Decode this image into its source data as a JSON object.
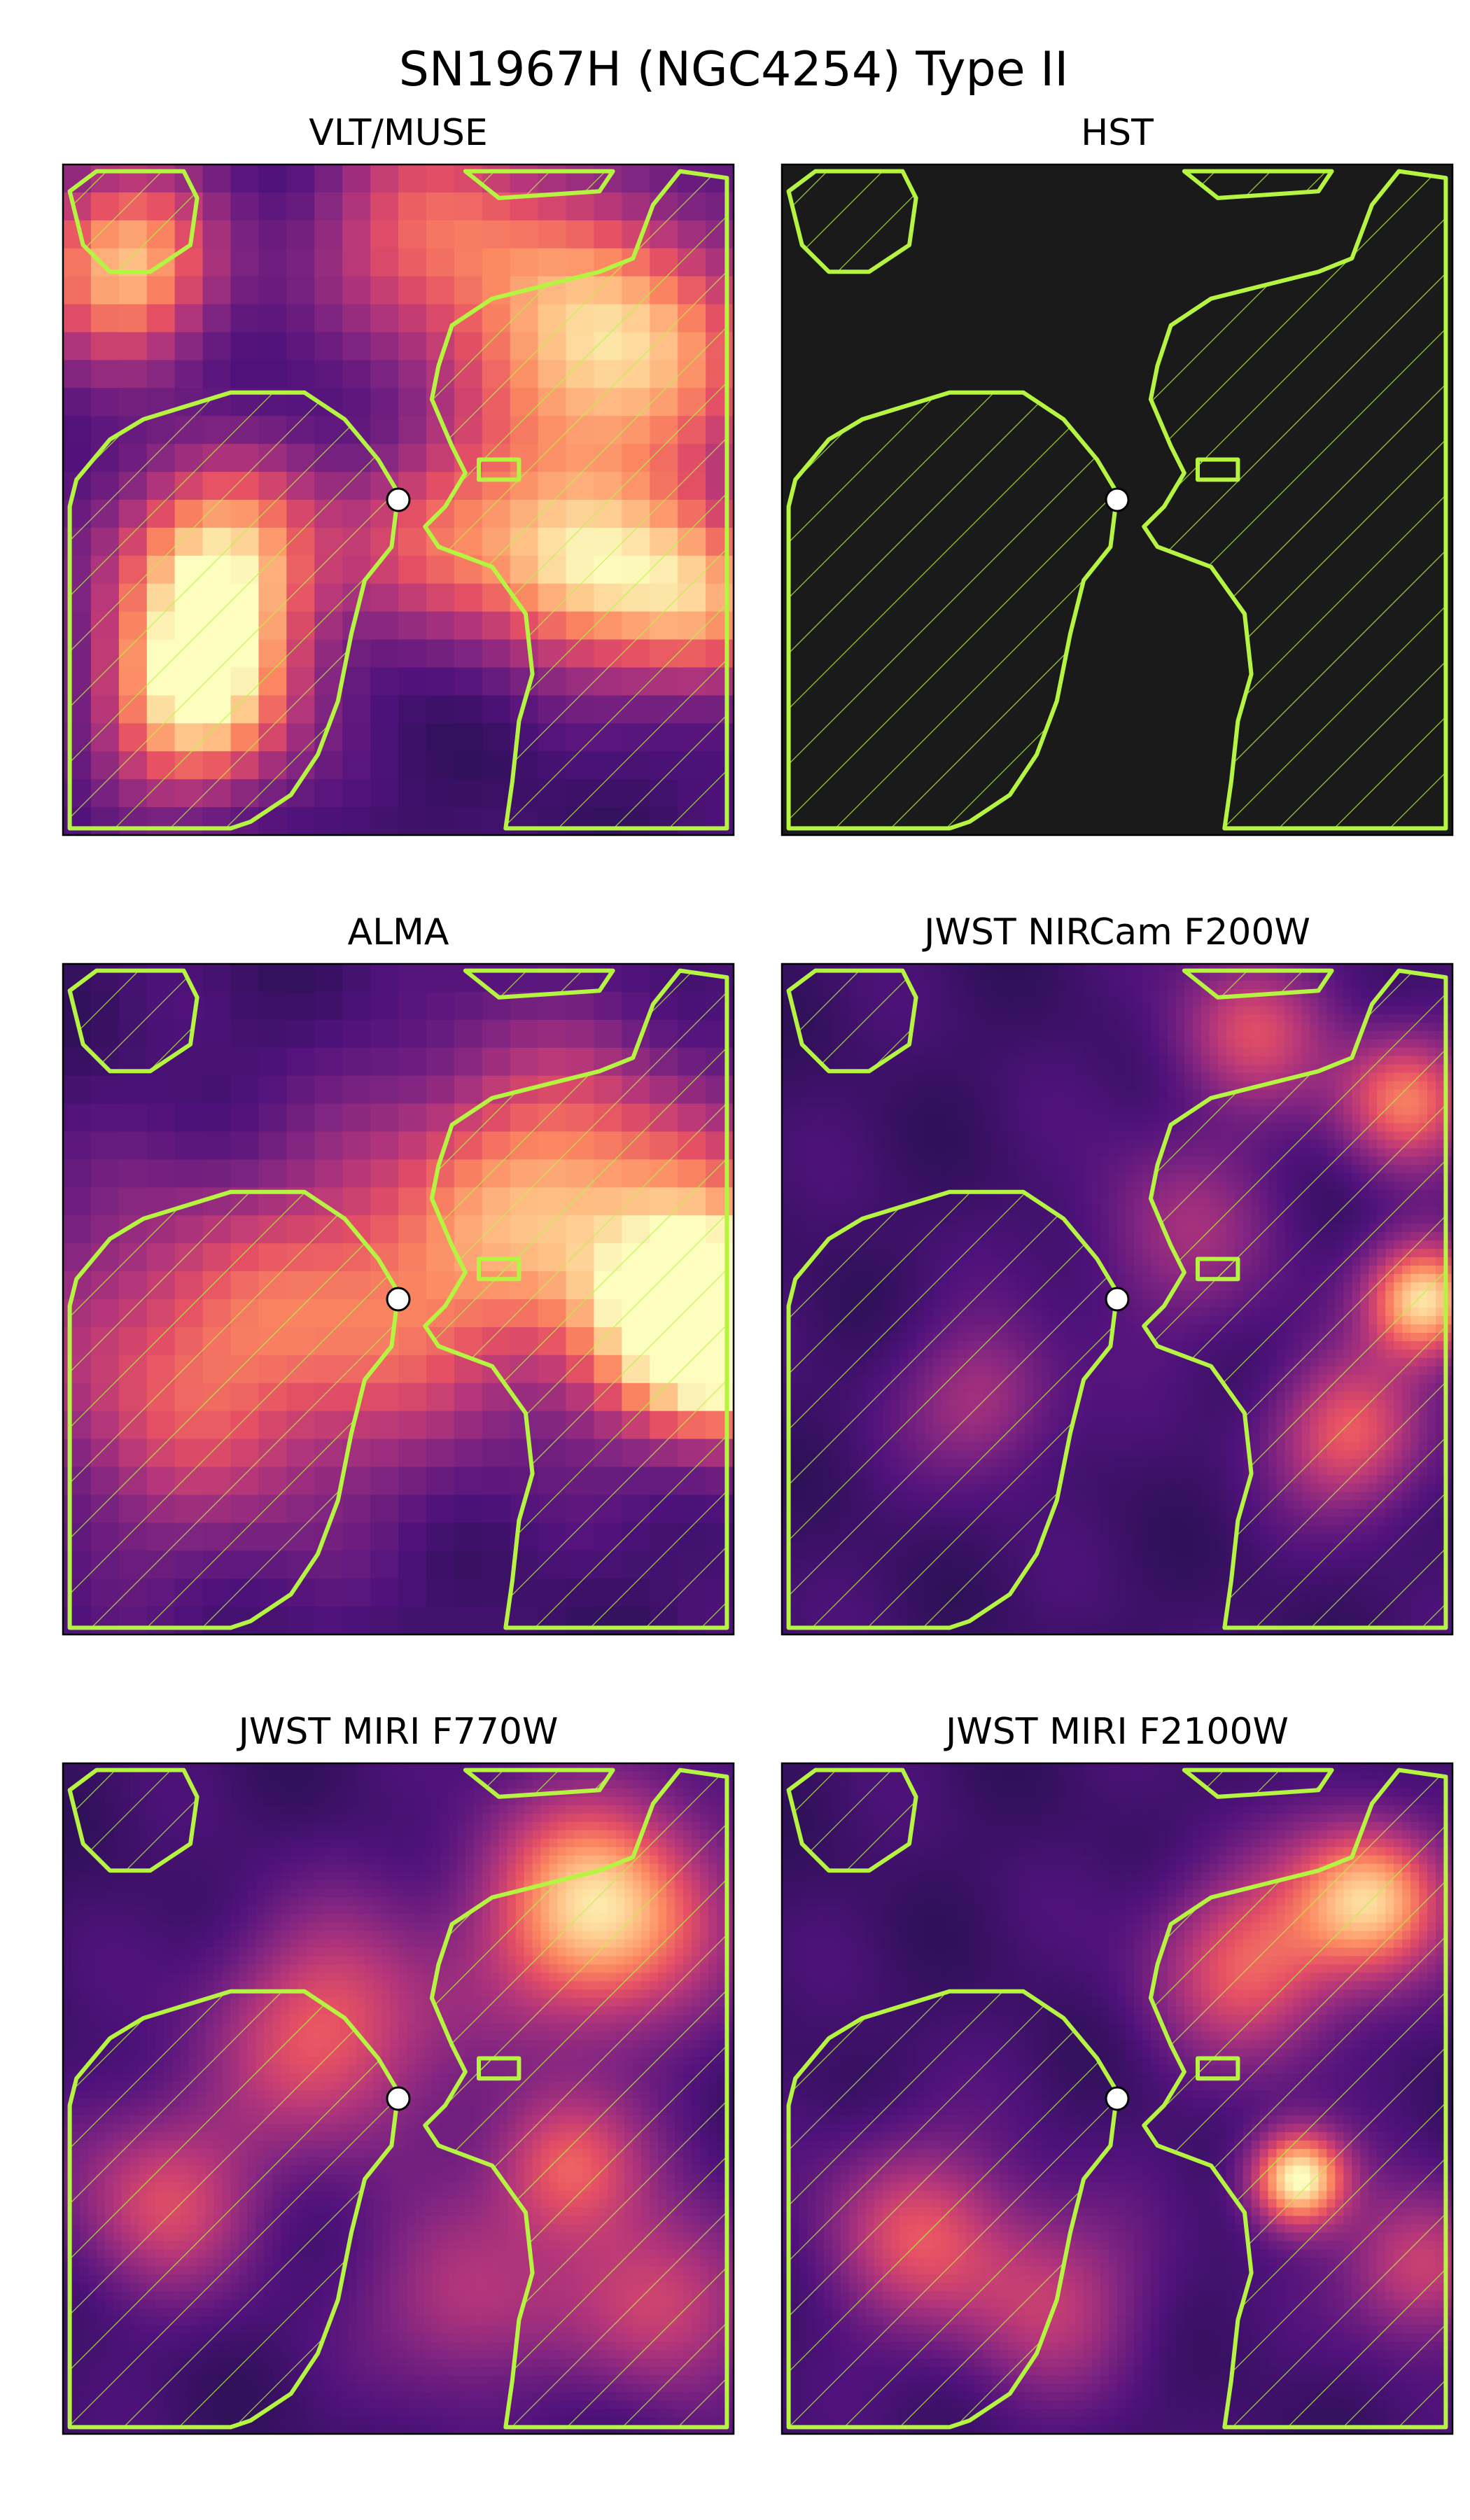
{
  "figure": {
    "suptitle": "SN1967H (NGC4254) Type II"
  },
  "colors": {
    "contour": "#b5f542",
    "marker_fill": "#ffffff",
    "marker_edge": "#000000",
    "colormap": [
      "#000004",
      "#1c1044",
      "#4f127b",
      "#812581",
      "#b5367a",
      "#e55064",
      "#fb8761",
      "#fec287",
      "#fcfdbf"
    ]
  },
  "chart_data": [
    {
      "type": "heatmap",
      "title": "VLT/MUSE",
      "image": "VLT/MUSE",
      "style": "pixelated",
      "grid": false,
      "marker": "open-circle-center",
      "sources": [
        {
          "x": 0.09,
          "y": 0.85,
          "s": 0.1,
          "a": 0.9
        },
        {
          "x": 0.23,
          "y": 0.4,
          "s": 0.11,
          "a": 1.0
        },
        {
          "x": 0.2,
          "y": 0.2,
          "s": 0.1,
          "a": 1.0
        },
        {
          "x": 0.82,
          "y": 0.72,
          "s": 0.15,
          "a": 1.0
        },
        {
          "x": 0.75,
          "y": 0.4,
          "s": 0.1,
          "a": 0.8
        },
        {
          "x": 0.95,
          "y": 0.35,
          "s": 0.1,
          "a": 0.8
        },
        {
          "x": 0.55,
          "y": 0.45,
          "s": 0.1,
          "a": 0.5
        },
        {
          "x": 0.55,
          "y": 0.9,
          "s": 0.12,
          "a": 0.6
        }
      ]
    },
    {
      "type": "heatmap",
      "title": "HST",
      "image": "HST",
      "style": "flat",
      "grid": false,
      "marker": "open-circle-center",
      "sources": []
    },
    {
      "type": "heatmap",
      "title": "ALMA",
      "image": "ALMA",
      "style": "pixelated",
      "grid": false,
      "marker": "open-circle-center",
      "sources": [
        {
          "x": 0.98,
          "y": 0.45,
          "s": 0.1,
          "a": 1.2
        },
        {
          "x": 0.9,
          "y": 0.55,
          "s": 0.16,
          "a": 0.7
        },
        {
          "x": 0.2,
          "y": 0.4,
          "s": 0.18,
          "a": 0.6
        },
        {
          "x": 0.5,
          "y": 0.5,
          "s": 0.15,
          "a": 0.5
        },
        {
          "x": 0.7,
          "y": 0.7,
          "s": 0.15,
          "a": 0.5
        }
      ]
    },
    {
      "type": "heatmap",
      "title": "JWST NIRCam F200W",
      "image": "JWST NIRCam F200W",
      "style": "smooth",
      "grid": false,
      "marker": "open-circle-center",
      "sources": [
        {
          "x": 0.96,
          "y": 0.5,
          "s": 0.06,
          "a": 1.0
        },
        {
          "x": 0.93,
          "y": 0.8,
          "s": 0.07,
          "a": 0.7
        },
        {
          "x": 0.85,
          "y": 0.3,
          "s": 0.08,
          "a": 0.6
        },
        {
          "x": 0.7,
          "y": 0.9,
          "s": 0.08,
          "a": 0.5
        },
        {
          "x": 0.3,
          "y": 0.35,
          "s": 0.08,
          "a": 0.35
        },
        {
          "x": 0.6,
          "y": 0.6,
          "s": 0.1,
          "a": 0.3
        }
      ]
    },
    {
      "type": "heatmap",
      "title": "JWST MIRI F770W",
      "image": "JWST MIRI F770W",
      "style": "smooth",
      "grid": false,
      "marker": "open-circle-center",
      "sources": [
        {
          "x": 0.8,
          "y": 0.78,
          "s": 0.12,
          "a": 1.0
        },
        {
          "x": 0.4,
          "y": 0.6,
          "s": 0.12,
          "a": 0.6
        },
        {
          "x": 0.15,
          "y": 0.35,
          "s": 0.1,
          "a": 0.5
        },
        {
          "x": 0.75,
          "y": 0.4,
          "s": 0.08,
          "a": 0.6
        },
        {
          "x": 0.9,
          "y": 0.2,
          "s": 0.1,
          "a": 0.5
        },
        {
          "x": 0.6,
          "y": 0.2,
          "s": 0.1,
          "a": 0.4
        }
      ]
    },
    {
      "type": "heatmap",
      "title": "JWST MIRI F2100W",
      "image": "JWST MIRI F2100W",
      "style": "smooth",
      "grid": false,
      "marker": "open-circle-center",
      "sources": [
        {
          "x": 0.77,
          "y": 0.38,
          "s": 0.05,
          "a": 1.1
        },
        {
          "x": 0.88,
          "y": 0.8,
          "s": 0.08,
          "a": 0.9
        },
        {
          "x": 0.7,
          "y": 0.7,
          "s": 0.1,
          "a": 0.6
        },
        {
          "x": 0.2,
          "y": 0.3,
          "s": 0.1,
          "a": 0.5
        },
        {
          "x": 0.4,
          "y": 0.2,
          "s": 0.1,
          "a": 0.4
        },
        {
          "x": 0.95,
          "y": 0.25,
          "s": 0.08,
          "a": 0.5
        }
      ]
    }
  ]
}
